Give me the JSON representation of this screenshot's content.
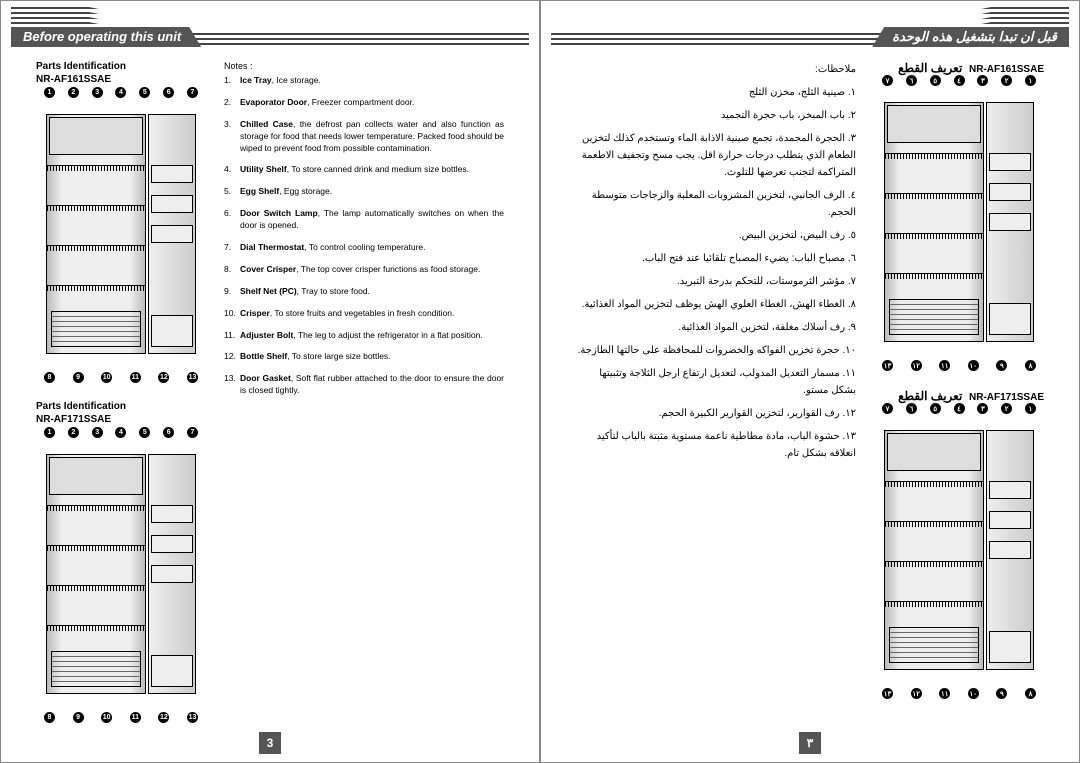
{
  "leftPage": {
    "headerTitle": "Before operating this unit",
    "sectionA": {
      "heading1": "Parts Identification",
      "model": "NR-AF161SSAE",
      "topCallouts": [
        "1",
        "2",
        "3",
        "4",
        "5",
        "6",
        "7"
      ],
      "bottomCallouts": [
        "8",
        "9",
        "10",
        "11",
        "12",
        "13"
      ]
    },
    "sectionB": {
      "heading1": "Parts Identification",
      "model": "NR-AF171SSAE",
      "topCallouts": [
        "1",
        "2",
        "3",
        "4",
        "5",
        "6",
        "7"
      ],
      "bottomCallouts": [
        "8",
        "9",
        "10",
        "11",
        "12",
        "13"
      ]
    },
    "notesLabel": "Notes :",
    "notes": [
      {
        "n": "1.",
        "b": "Ice Tray",
        "t": ", Ice storage."
      },
      {
        "n": "2.",
        "b": "Evaporator Door",
        "t": ", Freezer compartment door."
      },
      {
        "n": "3.",
        "b": "Chilled Case",
        "t": ", the defrost pan collects water and also function as storage for food that needs lower temperature. Packed food should be wiped to prevent food from possible contamination."
      },
      {
        "n": "4.",
        "b": "Utility Shelf",
        "t": ", To store canned drink and medium size bottles."
      },
      {
        "n": "5.",
        "b": "Egg Shelf",
        "t": ", Egg storage."
      },
      {
        "n": "6.",
        "b": "Door Switch Lamp",
        "t": ", The lamp automatically switches on when the door is opened."
      },
      {
        "n": "7.",
        "b": "Dial Thermostat",
        "t": ", To control cooling temperature."
      },
      {
        "n": "8.",
        "b": "Cover Crisper",
        "t": ", The top cover crisper functions as food storage."
      },
      {
        "n": "9.",
        "b": "Shelf Net (PC)",
        "t": ", Tray to store food."
      },
      {
        "n": "10.",
        "b": "Crisper",
        "t": ", To store fruits and vegetables in fresh condition."
      },
      {
        "n": "11.",
        "b": "Adjuster Bolt",
        "t": ", The leg to adjust the refrigerator in a flat position."
      },
      {
        "n": "12.",
        "b": "Bottle Shelf",
        "t": ", To store large size bottles."
      },
      {
        "n": "13.",
        "b": "Door Gasket",
        "t": ", Soft flat rubber attached to the door to ensure the door is closed tightly."
      }
    ],
    "pageNum": "3"
  },
  "rightPage": {
    "headerTitle": "قبل ان تبدا بتشغيل هذه الوحدة",
    "sectionA": {
      "heading": "تعريف القطع",
      "model": "NR-AF161SSAE",
      "topCallouts": [
        "١",
        "٢",
        "٣",
        "٤",
        "٥",
        "٦",
        "٧"
      ],
      "bottomCallouts": [
        "٨",
        "٩",
        "١٠",
        "١١",
        "١٢",
        "١٣"
      ]
    },
    "sectionB": {
      "heading": "تعريف القطع",
      "model": "NR-AF171SSAE",
      "topCallouts": [
        "١",
        "٢",
        "٣",
        "٤",
        "٥",
        "٦",
        "٧"
      ],
      "bottomCallouts": [
        "٨",
        "٩",
        "١٠",
        "١١",
        "١٢",
        "١٣"
      ]
    },
    "notesLabel": "ملاحظات:",
    "notes": [
      "١. صينية الثلج، مخزن الثلج",
      "٢. باب المبخر، باب حجرة التجميد",
      "٣. الحجرة المجمدة، تجمع صينية الاذابة الماء وتستخدم كذلك لتخزين الطعام الذي يتطلب درجات حرارة اقل. يجب مسح وتجفيف الاطعمة المتراكمة لتجنب تعرضها للتلوث.",
      "٤. الرف الجانبي، لتخزين المشروبات المعلبة والزجاجات متوسطة الحجم.",
      "٥. رف البيض، لتخزين البيض.",
      "٦. مصباح الباب: يضيء المصباح تلقائيا عند فتح الباب.",
      "٧. مؤشر الثرموستات، للتحكم بدرجة التبريد.",
      "٨. الغطاء الهش، الغطاء العلوي الهش يوظف لتخزين المواد الغذائية.",
      "٩. رف أسلاك مغلفة، لتخزين المواد الغذائية.",
      "١٠. حجرة تخزين الفواكه والخضروات للمحافظة على حالتها الطازجة.",
      "١١. مسمار التعديل المدولب، لتعديل ارتفاع ارجل الثلاجة وتثبيتها بشكل مستو.",
      "١٢. رف القوارير، لتخزين القوارير الكبيرة الحجم.",
      "١٣. حشوة الباب، مادة مطاطية ناعمة مستوية مثبتة بالباب لتأكيد انغلاقه بشكل تام."
    ],
    "pageNum": "٣"
  }
}
